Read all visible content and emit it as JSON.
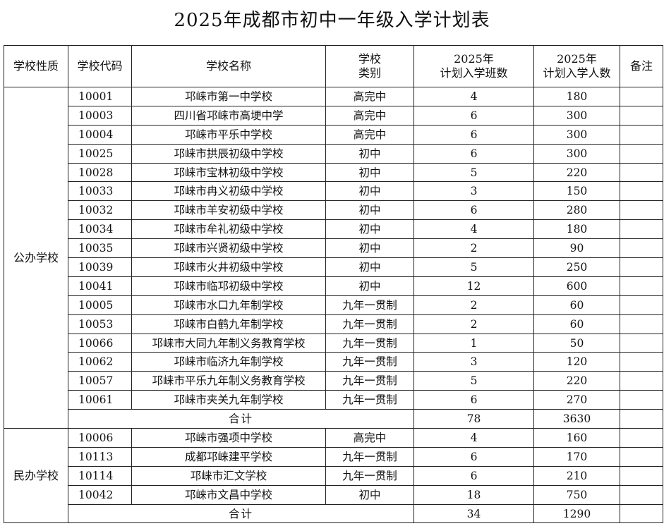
{
  "title": "2025年成都市初中一年级入学计划表",
  "headers": {
    "nature": "学校性质",
    "code": "学校代码",
    "name": "学校名称",
    "type_line1": "学校",
    "type_line2": "类别",
    "classes_line1": "2025年",
    "classes_line2": "计划入学班数",
    "students_line1": "2025年",
    "students_line2": "计划入学人数",
    "remarks": "备注"
  },
  "groups": [
    {
      "nature": "公办学校",
      "rows": [
        {
          "code": "10001",
          "name": "邛崃市第一中学校",
          "type": "高完中",
          "classes": "4",
          "students": "180"
        },
        {
          "code": "10003",
          "name": "四川省邛崃市高埂中学",
          "type": "高完中",
          "classes": "6",
          "students": "300"
        },
        {
          "code": "10004",
          "name": "邛崃市平乐中学校",
          "type": "高完中",
          "classes": "6",
          "students": "300"
        },
        {
          "code": "10025",
          "name": "邛崃市拱辰初级中学校",
          "type": "初中",
          "classes": "6",
          "students": "300"
        },
        {
          "code": "10028",
          "name": "邛崃市宝林初级中学校",
          "type": "初中",
          "classes": "5",
          "students": "220"
        },
        {
          "code": "10033",
          "name": "邛崃市冉义初级中学校",
          "type": "初中",
          "classes": "3",
          "students": "150"
        },
        {
          "code": "10032",
          "name": "邛崃市羊安初级中学校",
          "type": "初中",
          "classes": "6",
          "students": "280"
        },
        {
          "code": "10034",
          "name": "邛崃市牟礼初级中学校",
          "type": "初中",
          "classes": "4",
          "students": "180"
        },
        {
          "code": "10035",
          "name": "邛崃市兴贤初级中学校",
          "type": "初中",
          "classes": "2",
          "students": "90"
        },
        {
          "code": "10039",
          "name": "邛崃市火井初级中学校",
          "type": "初中",
          "classes": "5",
          "students": "250"
        },
        {
          "code": "10041",
          "name": "邛崃市临邛初级中学校",
          "type": "初中",
          "classes": "12",
          "students": "600"
        },
        {
          "code": "10005",
          "name": "邛崃市水口九年制学校",
          "type": "九年一贯制",
          "classes": "2",
          "students": "60"
        },
        {
          "code": "10053",
          "name": "邛崃市白鹤九年制学校",
          "type": "九年一贯制",
          "classes": "2",
          "students": "60"
        },
        {
          "code": "10066",
          "name": "邛崃市大同九年制义务教育学校",
          "type": "九年一贯制",
          "classes": "1",
          "students": "50"
        },
        {
          "code": "10062",
          "name": "邛崃市临济九年制学校",
          "type": "九年一贯制",
          "classes": "3",
          "students": "120"
        },
        {
          "code": "10057",
          "name": "邛崃市平乐九年制义务教育学校",
          "type": "九年一贯制",
          "classes": "5",
          "students": "220"
        },
        {
          "code": "10061",
          "name": "邛崃市夹关九年制学校",
          "type": "九年一贯制",
          "classes": "6",
          "students": "270"
        }
      ],
      "total": {
        "label": "合计",
        "classes": "78",
        "students": "3630"
      }
    },
    {
      "nature": "民办学校",
      "rows": [
        {
          "code": "10006",
          "name": "邛崃市强项中学校",
          "type": "高完中",
          "classes": "4",
          "students": "160"
        },
        {
          "code": "10113",
          "name": "成都邛崃建平学校",
          "type": "九年一贯制",
          "classes": "6",
          "students": "170"
        },
        {
          "code": "10114",
          "name": "邛崃市汇文学校",
          "type": "九年一贯制",
          "classes": "6",
          "students": "210"
        },
        {
          "code": "10042",
          "name": "邛崃市文昌中学校",
          "type": "初中",
          "classes": "18",
          "students": "750"
        }
      ],
      "total": {
        "label": "合计",
        "classes": "34",
        "students": "1290"
      }
    }
  ]
}
